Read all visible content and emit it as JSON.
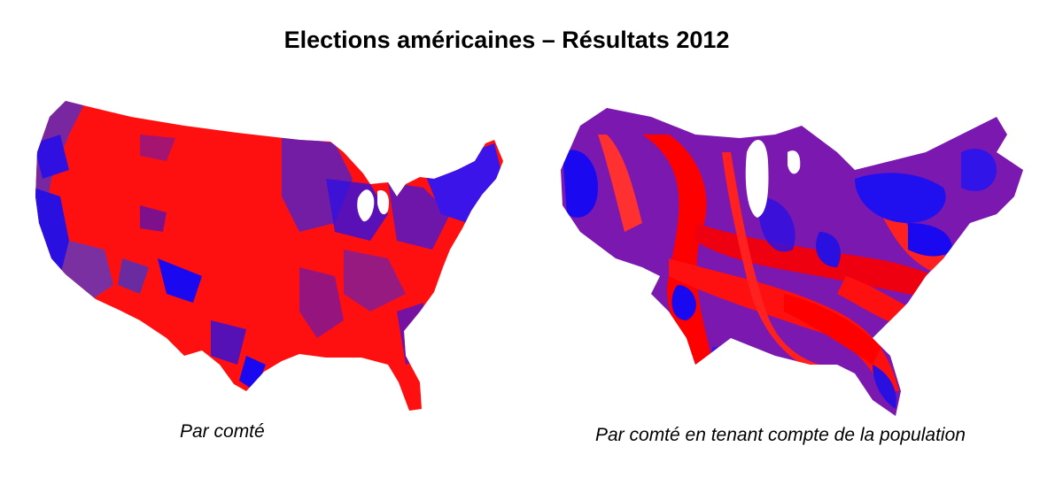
{
  "title": "Elections américaines – Résultats 2012",
  "maps": [
    {
      "caption": "Par comté",
      "colors": {
        "republican": "#ff0000",
        "democrat": "#0000ff",
        "mixed": "#7a1a9a"
      }
    },
    {
      "caption": "Par comté en tenant compte de la population",
      "colors": {
        "republican": "#ff0000",
        "democrat": "#0000ff",
        "mixed": "#7a1a9a"
      }
    }
  ]
}
